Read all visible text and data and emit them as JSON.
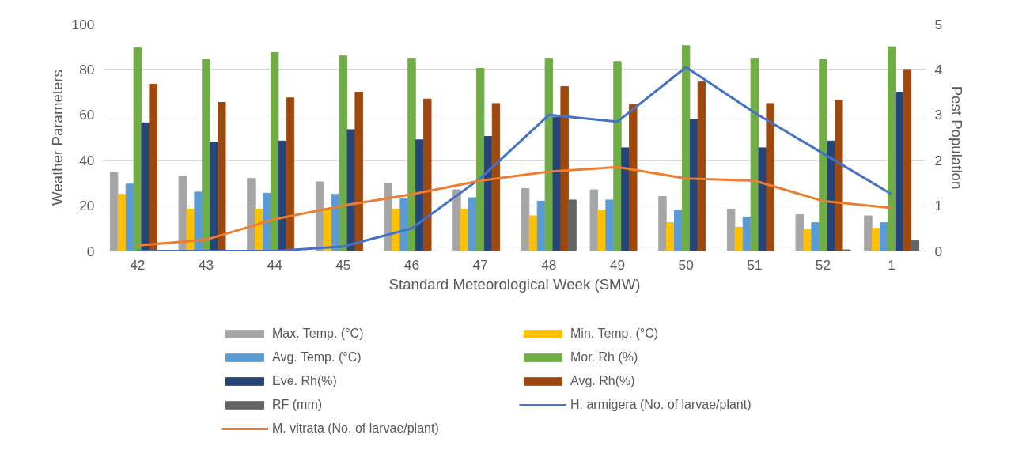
{
  "chart_data": {
    "type": "bar",
    "xlabel": "Standard Meteorological Week (SMW)",
    "ylabel": "Weather Parameters",
    "y2label": "Pest Population",
    "categories": [
      "42",
      "43",
      "44",
      "45",
      "46",
      "47",
      "48",
      "49",
      "50",
      "51",
      "52",
      "1"
    ],
    "ylim": [
      0,
      100
    ],
    "yticks": [
      0,
      20,
      40,
      60,
      80,
      100
    ],
    "y2lim": [
      0,
      5
    ],
    "y2ticks": [
      0,
      1,
      2,
      3,
      4,
      5
    ],
    "grid": "y",
    "legend": "bottom",
    "series": [
      {
        "name": "Max. Temp. (°C)",
        "color": "#a5a5a5",
        "values": [
          34.5,
          33,
          32,
          30.5,
          30,
          27,
          27.5,
          27,
          24,
          18.5,
          16,
          15.5
        ]
      },
      {
        "name": "Min. Temp. (°C)",
        "color": "#ffc000",
        "values": [
          25,
          18.5,
          18.5,
          18.5,
          18.5,
          18.5,
          15.5,
          18,
          12.5,
          10.5,
          9.5,
          10
        ]
      },
      {
        "name": "Avg. Temp. (°C)",
        "color": "#5b9bd5",
        "values": [
          29.5,
          26,
          25.5,
          25,
          23,
          23.5,
          22,
          22.5,
          18,
          15,
          12.5,
          12.5
        ]
      },
      {
        "name": "Mor. Rh (%)",
        "color": "#70ad47",
        "values": [
          89.5,
          84.5,
          87.5,
          86,
          85,
          80.5,
          85,
          83.5,
          90.5,
          85,
          84.5,
          90
        ]
      },
      {
        "name": "Eve. Rh(%)",
        "color": "#264478",
        "values": [
          56.5,
          48,
          48.5,
          53.5,
          49,
          50.5,
          59,
          45.5,
          58,
          45.5,
          48.5,
          70
        ]
      },
      {
        "name": "Avg. Rh(%)",
        "color": "#9e480e",
        "values": [
          73.5,
          65.5,
          67.5,
          70,
          67,
          65,
          72.5,
          64.5,
          74.5,
          65,
          66.5,
          80
        ]
      },
      {
        "name": "RF (mm)",
        "color": "#636363",
        "values": [
          0,
          0,
          0,
          0,
          0,
          0,
          22.5,
          0,
          0,
          0,
          0.5,
          4.5
        ]
      },
      {
        "name": "H. armigera (No. of larvae/plant)",
        "color": "#4472c4",
        "type": "line",
        "axis": "y2",
        "values": [
          0,
          0,
          0,
          0.1,
          0.5,
          1.6,
          3.0,
          2.85,
          4.05,
          3.05,
          2.15,
          1.25
        ]
      },
      {
        "name": "M. vitrata (No. of larvae/plant)",
        "color": "#ed7d31",
        "type": "line",
        "axis": "y2",
        "values": [
          0.12,
          0.25,
          0.7,
          1.0,
          1.25,
          1.55,
          1.75,
          1.85,
          1.6,
          1.55,
          1.1,
          0.95
        ]
      }
    ]
  }
}
